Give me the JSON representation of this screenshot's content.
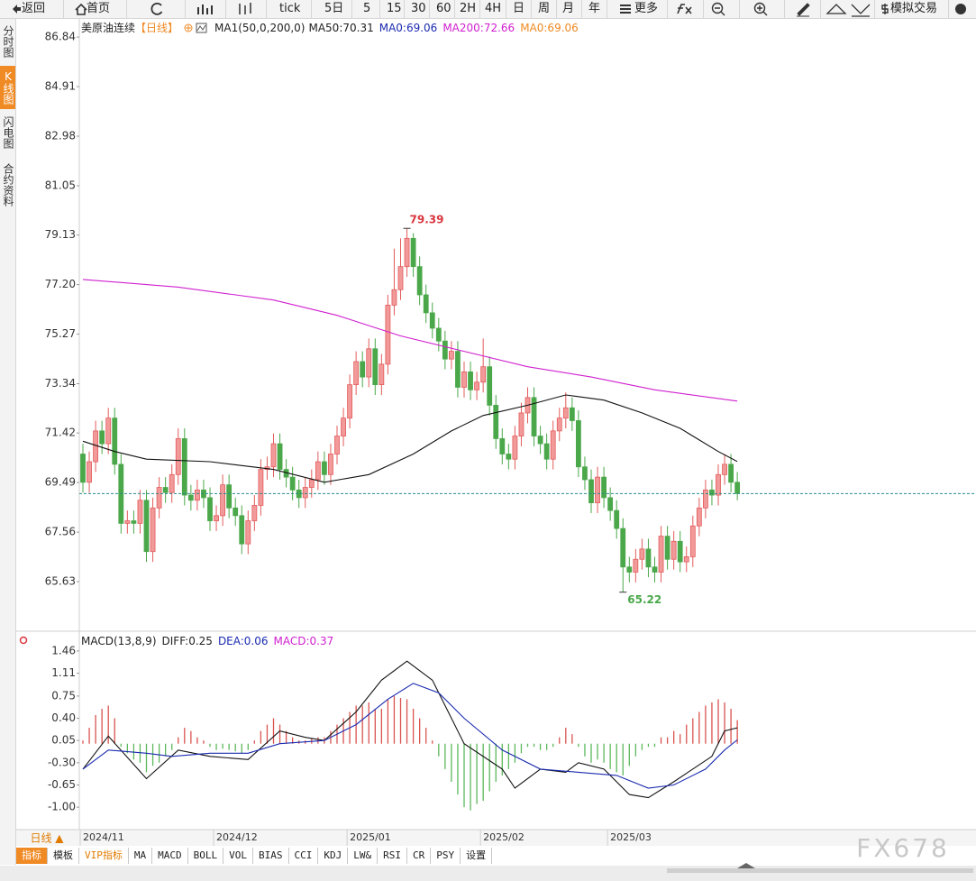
{
  "toolbar": {
    "items": [
      "返回",
      "首页",
      "tick",
      "5日",
      "5",
      "15",
      "30",
      "60",
      "2H",
      "4H",
      "日",
      "周",
      "月",
      "年",
      "更多",
      "模拟交易"
    ]
  },
  "sidebar": {
    "tabs": [
      "分时图",
      "K线图",
      "闪电图",
      "合约资料"
    ],
    "active": 1
  },
  "chart_data": [
    {
      "type": "candlestick",
      "title": "美原油连续",
      "period": "【日线】",
      "legend": [
        {
          "text": "MA1(50,0,200,0)",
          "color": "#222222"
        },
        {
          "text": "MA50:70.31",
          "color": "#222222"
        },
        {
          "text": "MA0:69.06",
          "color": "#1a2bb0"
        },
        {
          "text": "MA200:72.66",
          "color": "#d020d0"
        },
        {
          "text": "MA0:69.06",
          "color": "#f08a24"
        }
      ],
      "up_color": "#e35b5b",
      "down_color": "#4aa84a",
      "categories": [
        "2024/11",
        null,
        null,
        null,
        null,
        null,
        null,
        null,
        null,
        null,
        null,
        null,
        null,
        null,
        null,
        null,
        null,
        null,
        null,
        null,
        null,
        "2024/12",
        null,
        null,
        null,
        null,
        null,
        null,
        null,
        null,
        null,
        null,
        null,
        null,
        null,
        null,
        null,
        null,
        null,
        null,
        null,
        null,
        "2025/01",
        null,
        null,
        null,
        null,
        null,
        null,
        null,
        null,
        null,
        null,
        null,
        null,
        null,
        null,
        null,
        null,
        null,
        null,
        null,
        null,
        "2025/02",
        null,
        null,
        null,
        null,
        null,
        null,
        null,
        null,
        null,
        null,
        null,
        null,
        null,
        null,
        null,
        null,
        null,
        null,
        null,
        "2025/03",
        null,
        null,
        null,
        null,
        null,
        null,
        null,
        null,
        null,
        null,
        null,
        null,
        null,
        null,
        null,
        null,
        null,
        null,
        null,
        null
      ],
      "open": [
        70.6,
        69.5,
        70.3,
        71.5,
        71.0,
        72.0,
        70.2,
        67.9,
        68.0,
        67.9,
        68.8,
        66.8,
        68.5,
        69.3,
        69.1,
        69.8,
        71.2,
        69.0,
        68.8,
        69.2,
        68.9,
        68.0,
        68.2,
        69.4,
        68.5,
        68.2,
        67.1,
        68.0,
        68.6,
        70.0,
        70.1,
        71.0,
        70.0,
        69.7,
        69.2,
        68.9,
        69.3,
        69.6,
        70.3,
        69.8,
        70.6,
        71.3,
        72.0,
        73.3,
        74.2,
        73.6,
        74.7,
        73.3,
        74.1,
        76.4,
        77.0,
        77.9,
        79.0,
        77.9,
        76.8,
        76.1,
        75.5,
        75.0,
        74.3,
        74.6,
        73.2,
        73.8,
        73.1,
        73.4,
        74.0,
        72.5,
        71.2,
        70.6,
        70.4,
        71.3,
        72.2,
        72.8,
        71.3,
        71.0,
        70.4,
        71.5,
        72.0,
        72.4,
        71.9,
        70.1,
        69.6,
        68.7,
        69.7,
        68.9,
        68.4,
        67.7,
        66.2,
        66.0,
        66.5,
        66.9,
        66.2,
        66.0,
        67.4,
        66.5,
        67.2,
        66.4,
        66.6,
        67.8,
        68.5,
        69.2,
        69.0,
        69.8,
        70.2,
        69.5
      ],
      "high": [
        71.0,
        70.7,
        71.9,
        71.9,
        72.4,
        72.4,
        70.6,
        68.4,
        68.4,
        69.2,
        69.2,
        68.9,
        69.7,
        69.7,
        70.2,
        71.6,
        71.6,
        69.4,
        69.6,
        69.6,
        69.3,
        68.6,
        69.8,
        69.8,
        68.9,
        68.6,
        68.4,
        69.0,
        70.4,
        70.5,
        71.4,
        71.4,
        70.4,
        70.1,
        69.6,
        69.7,
        70.0,
        70.7,
        70.7,
        71.0,
        71.7,
        72.4,
        73.7,
        74.6,
        74.6,
        75.1,
        75.1,
        74.5,
        76.8,
        78.6,
        79.0,
        79.39,
        79.2,
        78.3,
        77.2,
        76.5,
        75.9,
        75.4,
        75.0,
        75.0,
        74.2,
        74.2,
        73.8,
        75.1,
        74.4,
        72.9,
        71.6,
        71.0,
        71.7,
        72.6,
        73.2,
        73.2,
        71.7,
        71.4,
        71.9,
        72.4,
        73.0,
        72.8,
        72.3,
        70.5,
        70.0,
        70.1,
        70.1,
        69.3,
        68.8,
        68.1,
        66.6,
        66.9,
        67.3,
        67.3,
        66.6,
        67.8,
        67.8,
        67.6,
        67.6,
        67.0,
        68.2,
        68.9,
        69.6,
        69.6,
        70.2,
        70.6,
        70.6,
        69.9
      ],
      "low": [
        69.1,
        69.1,
        69.9,
        70.6,
        70.6,
        69.8,
        67.5,
        67.5,
        67.5,
        67.5,
        66.4,
        66.4,
        68.1,
        68.7,
        68.7,
        69.4,
        68.6,
        68.4,
        68.4,
        68.5,
        67.6,
        67.6,
        67.8,
        68.1,
        67.8,
        66.7,
        66.7,
        67.6,
        68.2,
        69.6,
        69.7,
        69.6,
        69.3,
        68.8,
        68.5,
        68.5,
        68.9,
        69.2,
        69.4,
        69.4,
        70.2,
        70.9,
        71.6,
        72.9,
        73.2,
        73.2,
        72.9,
        72.9,
        73.7,
        76.0,
        76.6,
        77.5,
        77.5,
        76.4,
        75.7,
        75.1,
        74.6,
        73.9,
        73.9,
        72.8,
        72.8,
        72.7,
        72.7,
        73.0,
        72.1,
        70.8,
        70.2,
        70.0,
        70.0,
        70.9,
        71.8,
        70.9,
        70.6,
        70.0,
        70.0,
        71.1,
        71.6,
        71.5,
        69.7,
        69.2,
        68.3,
        68.3,
        68.5,
        68.0,
        67.3,
        65.22,
        65.6,
        65.6,
        66.1,
        65.8,
        65.6,
        65.6,
        66.1,
        66.1,
        66.0,
        66.0,
        66.2,
        67.4,
        68.1,
        68.6,
        68.6,
        69.4,
        69.1,
        68.8
      ],
      "close": [
        69.5,
        70.3,
        71.5,
        71.0,
        72.0,
        70.2,
        67.9,
        68.0,
        67.9,
        68.8,
        66.8,
        68.5,
        69.3,
        69.1,
        69.8,
        71.2,
        69.0,
        68.8,
        69.2,
        68.9,
        68.0,
        68.2,
        69.4,
        68.5,
        68.2,
        67.1,
        68.0,
        68.6,
        70.0,
        70.1,
        71.0,
        70.0,
        69.7,
        69.2,
        68.9,
        69.3,
        69.6,
        70.3,
        69.8,
        70.6,
        71.3,
        72.0,
        73.3,
        74.2,
        73.6,
        74.7,
        73.3,
        74.1,
        76.4,
        77.0,
        77.9,
        79.0,
        77.9,
        76.8,
        76.1,
        75.5,
        75.0,
        74.3,
        74.6,
        73.2,
        73.8,
        73.1,
        73.4,
        74.0,
        72.5,
        71.2,
        70.6,
        70.4,
        71.3,
        72.2,
        72.8,
        71.3,
        71.0,
        70.4,
        71.5,
        72.0,
        72.4,
        71.9,
        70.1,
        69.6,
        68.7,
        69.7,
        68.9,
        68.4,
        67.7,
        66.2,
        66.0,
        66.5,
        66.9,
        66.2,
        66.0,
        67.4,
        66.5,
        67.2,
        66.4,
        66.6,
        67.8,
        68.5,
        69.2,
        69.0,
        69.8,
        70.2,
        69.5,
        69.06
      ],
      "series": [
        {
          "color": "#111111",
          "x": [
            0,
            5,
            10,
            20,
            30,
            38,
            45,
            52,
            58,
            63,
            70,
            76,
            82,
            88,
            94,
            100,
            103
          ],
          "values": [
            71.1,
            70.7,
            70.4,
            70.3,
            70.0,
            69.5,
            69.8,
            70.6,
            71.5,
            72.1,
            72.5,
            72.9,
            72.7,
            72.2,
            71.6,
            70.7,
            70.31
          ]
        },
        {
          "color": "#d020d0",
          "x": [
            0,
            15,
            30,
            40,
            50,
            60,
            70,
            80,
            90,
            103
          ],
          "values": [
            77.4,
            77.1,
            76.6,
            76.0,
            75.2,
            74.6,
            74.0,
            73.6,
            73.1,
            72.66
          ]
        }
      ],
      "last_color": "#2a8a8a",
      "max_label": 79.39,
      "min_label": 65.22,
      "ylim": [
        64.05,
        87.23
      ],
      "yticks": [
        86.84,
        84.91,
        82.98,
        81.05,
        79.13,
        {
          "value": 77.2,
          "label": "77.20"
        },
        75.27,
        73.34,
        71.42,
        69.49,
        67.56,
        65.63
      ]
    },
    {
      "type": "macd",
      "title": "MACD(13,8,9)",
      "legend": [
        {
          "text": "DIFF:0.25",
          "color": "#222222"
        },
        {
          "text": "DEA:0.06",
          "color": "#1a2bb0"
        },
        {
          "text": "MACD:0.37",
          "color": "#d020d0"
        }
      ],
      "values": [
        0.05,
        0.25,
        0.45,
        0.55,
        0.6,
        0.4,
        -0.05,
        -0.15,
        -0.25,
        -0.3,
        -0.45,
        -0.35,
        -0.3,
        -0.2,
        -0.1,
        0.1,
        0.25,
        0.2,
        0.1,
        0.05,
        -0.05,
        -0.1,
        -0.08,
        -0.1,
        -0.12,
        -0.15,
        -0.1,
        0.05,
        0.2,
        0.3,
        0.4,
        0.3,
        0.2,
        0.1,
        0.05,
        0.05,
        0.08,
        0.1,
        0.1,
        0.2,
        0.3,
        0.4,
        0.5,
        0.6,
        0.6,
        0.65,
        0.55,
        0.55,
        0.7,
        0.75,
        0.72,
        0.7,
        0.55,
        0.4,
        0.25,
        0.05,
        -0.2,
        -0.4,
        -0.6,
        -0.8,
        -1.0,
        -1.05,
        -0.95,
        -0.9,
        -0.75,
        -0.6,
        -0.5,
        -0.4,
        -0.3,
        -0.15,
        -0.05,
        -0.05,
        -0.1,
        -0.1,
        -0.05,
        0.1,
        0.25,
        0.15,
        -0.05,
        -0.2,
        -0.3,
        -0.25,
        -0.3,
        -0.4,
        -0.45,
        -0.5,
        -0.35,
        -0.2,
        -0.1,
        -0.05,
        -0.05,
        0.1,
        0.1,
        0.2,
        0.15,
        0.3,
        0.4,
        0.5,
        0.6,
        0.65,
        0.7,
        0.65,
        0.55,
        0.37
      ],
      "up_color": "#d9534f",
      "down_color": "#5cb85c",
      "series": [
        {
          "color": "#111111",
          "x": [
            0,
            4,
            10,
            15,
            20,
            26,
            31,
            35,
            38,
            43,
            47,
            51,
            55,
            60,
            66,
            68,
            72,
            76,
            78,
            82,
            86,
            89,
            93,
            99,
            101,
            103
          ],
          "values": [
            -0.4,
            0.12,
            -0.55,
            -0.1,
            -0.2,
            -0.25,
            0.2,
            0.1,
            0.05,
            0.5,
            1.0,
            1.3,
            1.0,
            0.0,
            -0.4,
            -0.7,
            -0.4,
            -0.45,
            -0.3,
            -0.4,
            -0.8,
            -0.85,
            -0.6,
            -0.2,
            0.2,
            0.25
          ]
        },
        {
          "color": "#1a2bb0",
          "x": [
            0,
            4,
            10,
            14,
            20,
            26,
            31,
            38,
            43,
            48,
            52,
            56,
            60,
            66,
            72,
            78,
            84,
            89,
            93,
            98,
            101,
            103
          ],
          "values": [
            -0.4,
            -0.1,
            -0.15,
            -0.2,
            -0.15,
            -0.15,
            0.0,
            0.05,
            0.3,
            0.7,
            0.95,
            0.8,
            0.4,
            -0.1,
            -0.4,
            -0.45,
            -0.5,
            -0.7,
            -0.65,
            -0.4,
            -0.1,
            0.06
          ]
        }
      ],
      "ylim": [
        -1.14,
        1.7
      ],
      "yticks": [
        1.46,
        1.11,
        0.75,
        {
          "value": 0.4,
          "label": "0.40"
        },
        0.05,
        {
          "value": -0.3,
          "label": "-0.30"
        },
        -0.65,
        {
          "value": -1.0,
          "label": "-1.00"
        }
      ]
    }
  ],
  "period_button": "日线 ▲",
  "indicator_tabs": [
    "指标",
    "模板",
    "VIP指标",
    "MA",
    "MACD",
    "BOLL",
    "VOL",
    "BIAS",
    "CCI",
    "KDJ",
    "LW&",
    "RSI",
    "CR",
    "PSY",
    "设置"
  ],
  "watermark": "FX678"
}
